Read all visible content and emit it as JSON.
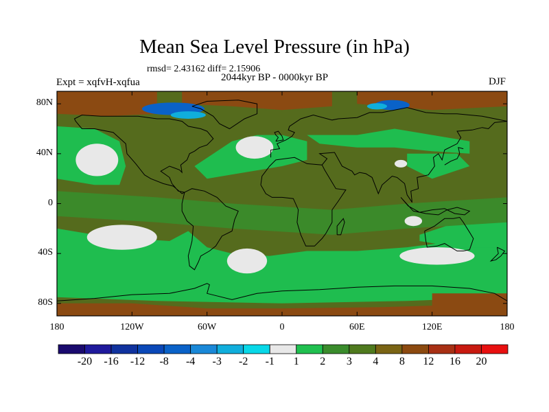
{
  "title": "Mean Sea Level Pressure (in hPa)",
  "stats": "rmsd= 2.43162  diff= 2.15906",
  "period": "2044kyr BP - 0000kyr BP",
  "experiment": "Expt = xqfvH-xqfua",
  "season": "DJF",
  "y_ticks": [
    "80N",
    "40N",
    "0",
    "40S",
    "80S"
  ],
  "y_tick_values": [
    80,
    40,
    0,
    -40,
    -80
  ],
  "x_ticks": [
    "180",
    "120W",
    "60W",
    "0",
    "60E",
    "120E",
    "180"
  ],
  "x_tick_values": [
    -180,
    -120,
    -60,
    0,
    60,
    120,
    180
  ],
  "colorbar": {
    "labels": [
      "-20",
      "-16",
      "-12",
      "-8",
      "-4",
      "-3",
      "-2",
      "-1",
      "1",
      "2",
      "3",
      "4",
      "8",
      "12",
      "16",
      "20"
    ],
    "colors": [
      "#1a0a6e",
      "#1f1a9c",
      "#10329e",
      "#0a48b8",
      "#0a62c8",
      "#1a88d8",
      "#10aedc",
      "#08d8e8",
      "#e8e8e8",
      "#20c050",
      "#3a8c2c",
      "#4f7a1e",
      "#7a6414",
      "#8c4a10",
      "#a83014",
      "#c81a10",
      "#e81010"
    ]
  },
  "colors": {
    "ocean_green": "#1fbd4f",
    "dark_green": "#3b8a2a",
    "olive": "#556b1d",
    "brown": "#8b4a12",
    "near_zero": "#e8e8e8",
    "blue": "#0a62c8",
    "cyan": "#10aedc"
  }
}
